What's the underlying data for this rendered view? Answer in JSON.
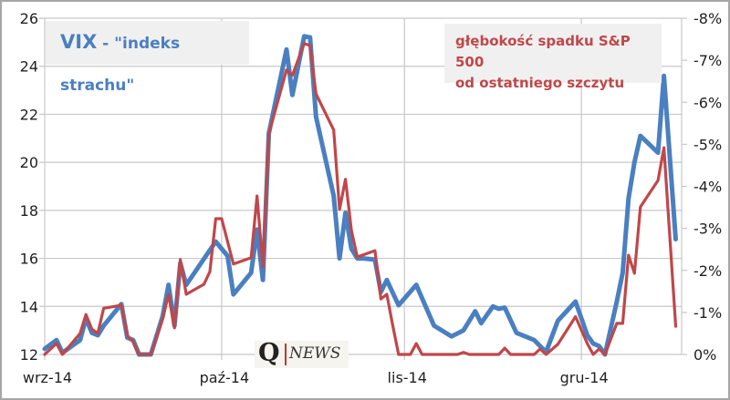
{
  "chart_data": {
    "type": "line",
    "title": "",
    "x_type": "date",
    "xlim": [
      "2014-09-01",
      "2014-12-18"
    ],
    "x_ticks": [
      {
        "date": "2014-09-01",
        "label": "wrz-14"
      },
      {
        "date": "2014-10-01",
        "label": "paź-14"
      },
      {
        "date": "2014-11-01",
        "label": "lis-14"
      },
      {
        "date": "2014-12-01",
        "label": "gru-14"
      }
    ],
    "y_left": {
      "range": [
        12,
        26
      ],
      "ticks": [
        "12",
        "14",
        "16",
        "18",
        "20",
        "22",
        "24",
        "26"
      ]
    },
    "y_right": {
      "range": [
        0,
        -8
      ],
      "unit": "%",
      "reversed": true,
      "ticks": [
        "0%",
        "-1%",
        "-2%",
        "-3%",
        "-4%",
        "-5%",
        "-6%",
        "-7%",
        "-8%"
      ]
    },
    "grid": true,
    "series": [
      {
        "name": "VIX - \"indeks strachu\"",
        "axis": "left",
        "color": "#4a7fc1",
        "points": [
          [
            "2014-09-01",
            12.23
          ],
          [
            "2014-09-03",
            12.6
          ],
          [
            "2014-09-04",
            12.07
          ],
          [
            "2014-09-07",
            12.6
          ],
          [
            "2014-09-08",
            13.5
          ],
          [
            "2014-09-09",
            12.9
          ],
          [
            "2014-09-10",
            12.8
          ],
          [
            "2014-09-11",
            13.2
          ],
          [
            "2014-09-14",
            14.1
          ],
          [
            "2014-09-15",
            12.7
          ],
          [
            "2014-09-16",
            12.6
          ],
          [
            "2014-09-17",
            12.0
          ],
          [
            "2014-09-19",
            12.0
          ],
          [
            "2014-09-21",
            13.6
          ],
          [
            "2014-09-22",
            14.9
          ],
          [
            "2014-09-23",
            13.2
          ],
          [
            "2014-09-24",
            15.8
          ],
          [
            "2014-09-25",
            14.9
          ],
          [
            "2014-09-30",
            16.7
          ],
          [
            "2014-10-02",
            16.1
          ],
          [
            "2014-10-03",
            14.5
          ],
          [
            "2014-10-06",
            15.4
          ],
          [
            "2014-10-07",
            17.2
          ],
          [
            "2014-10-08",
            15.1
          ],
          [
            "2014-10-09",
            21.2
          ],
          [
            "2014-10-12",
            24.7
          ],
          [
            "2014-10-13",
            22.8
          ],
          [
            "2014-10-15",
            25.25
          ],
          [
            "2014-10-16",
            25.2
          ],
          [
            "2014-10-17",
            21.9
          ],
          [
            "2014-10-20",
            18.6
          ],
          [
            "2014-10-21",
            16.0
          ],
          [
            "2014-10-22",
            17.9
          ],
          [
            "2014-10-23",
            16.4
          ],
          [
            "2014-10-24",
            16.0
          ],
          [
            "2014-10-25",
            16.0
          ],
          [
            "2014-10-27",
            15.95
          ],
          [
            "2014-10-28",
            14.6
          ],
          [
            "2014-10-29",
            15.1
          ],
          [
            "2014-10-31",
            14.05
          ],
          [
            "2014-11-03",
            14.9
          ],
          [
            "2014-11-06",
            13.2
          ],
          [
            "2014-11-09",
            12.75
          ],
          [
            "2014-11-11",
            13.0
          ],
          [
            "2014-11-13",
            13.8
          ],
          [
            "2014-11-14",
            13.3
          ],
          [
            "2014-11-16",
            14.0
          ],
          [
            "2014-11-17",
            13.9
          ],
          [
            "2014-11-18",
            13.95
          ],
          [
            "2014-11-20",
            12.9
          ],
          [
            "2014-11-23",
            12.6
          ],
          [
            "2014-11-25",
            12.1
          ],
          [
            "2014-11-27",
            13.4
          ],
          [
            "2014-11-30",
            14.2
          ],
          [
            "2014-12-02",
            12.8
          ],
          [
            "2014-12-03",
            12.45
          ],
          [
            "2014-12-04",
            12.35
          ],
          [
            "2014-12-05",
            12.0
          ],
          [
            "2014-12-07",
            14.2
          ],
          [
            "2014-12-08",
            15.4
          ],
          [
            "2014-12-09",
            18.5
          ],
          [
            "2014-12-10",
            20.0
          ],
          [
            "2014-12-11",
            21.1
          ],
          [
            "2014-12-14",
            20.4
          ],
          [
            "2014-12-15",
            23.6
          ],
          [
            "2014-12-17",
            16.8
          ]
        ]
      },
      {
        "name": "głębokość spadku S&P 500 od ostatniego szczytu",
        "axis": "right",
        "color": "#c0474a",
        "points": [
          [
            "2014-09-01",
            0
          ],
          [
            "2014-09-03",
            -0.26
          ],
          [
            "2014-09-04",
            0
          ],
          [
            "2014-09-07",
            -0.5
          ],
          [
            "2014-09-08",
            -0.95
          ],
          [
            "2014-09-09",
            -0.6
          ],
          [
            "2014-09-10",
            -0.5
          ],
          [
            "2014-09-11",
            -1.1
          ],
          [
            "2014-09-14",
            -1.17
          ],
          [
            "2014-09-15",
            -0.45
          ],
          [
            "2014-09-16",
            -0.3
          ],
          [
            "2014-09-17",
            0
          ],
          [
            "2014-09-19",
            0
          ],
          [
            "2014-09-21",
            -0.85
          ],
          [
            "2014-09-22",
            -1.43
          ],
          [
            "2014-09-23",
            -0.63
          ],
          [
            "2014-09-24",
            -2.26
          ],
          [
            "2014-09-25",
            -1.43
          ],
          [
            "2014-09-28",
            -1.67
          ],
          [
            "2014-09-29",
            -1.97
          ],
          [
            "2014-09-30",
            -3.23
          ],
          [
            "2014-10-01",
            -3.23
          ],
          [
            "2014-10-03",
            -2.15
          ],
          [
            "2014-10-06",
            -2.3
          ],
          [
            "2014-10-07",
            -3.77
          ],
          [
            "2014-10-08",
            -2.08
          ],
          [
            "2014-10-09",
            -5.25
          ],
          [
            "2014-10-12",
            -6.77
          ],
          [
            "2014-10-13",
            -6.64
          ],
          [
            "2014-10-15",
            -7.4
          ],
          [
            "2014-10-16",
            -7.35
          ],
          [
            "2014-10-17",
            -6.2
          ],
          [
            "2014-10-20",
            -5.34
          ],
          [
            "2014-10-21",
            -3.45
          ],
          [
            "2014-10-22",
            -4.17
          ],
          [
            "2014-10-23",
            -2.95
          ],
          [
            "2014-10-24",
            -2.32
          ],
          [
            "2014-10-27",
            -2.47
          ],
          [
            "2014-10-28",
            -1.32
          ],
          [
            "2014-10-29",
            -1.43
          ],
          [
            "2014-10-30",
            -0.7
          ],
          [
            "2014-10-31",
            0
          ],
          [
            "2014-11-02",
            0
          ],
          [
            "2014-11-03",
            -0.26
          ],
          [
            "2014-11-04",
            0
          ],
          [
            "2014-11-10",
            0
          ],
          [
            "2014-11-11",
            -0.05
          ],
          [
            "2014-11-12",
            0
          ],
          [
            "2014-11-17",
            0
          ],
          [
            "2014-11-18",
            -0.15
          ],
          [
            "2014-11-19",
            0
          ],
          [
            "2014-11-23",
            0
          ],
          [
            "2014-11-24",
            -0.13
          ],
          [
            "2014-11-25",
            0
          ],
          [
            "2014-11-27",
            -0.24
          ],
          [
            "2014-11-30",
            -0.9
          ],
          [
            "2014-12-02",
            -0.26
          ],
          [
            "2014-12-03",
            0
          ],
          [
            "2014-12-04",
            -0.13
          ],
          [
            "2014-12-05",
            0
          ],
          [
            "2014-12-07",
            -0.74
          ],
          [
            "2014-12-08",
            -0.74
          ],
          [
            "2014-12-09",
            -2.36
          ],
          [
            "2014-12-10",
            -1.93
          ],
          [
            "2014-12-11",
            -3.51
          ],
          [
            "2014-12-14",
            -4.14
          ],
          [
            "2014-12-15",
            -4.92
          ],
          [
            "2014-12-17",
            -0.67
          ]
        ]
      }
    ],
    "legend": {
      "vix_main": "VIX",
      "vix_sub": " - \"indeks strachu\"",
      "sp_line1": "głębokość spadku S&P 500",
      "sp_line2": "od ostatniego szczytu",
      "placement": "inside-top"
    }
  },
  "logo": {
    "q": "Q",
    "text": "NEWS"
  }
}
